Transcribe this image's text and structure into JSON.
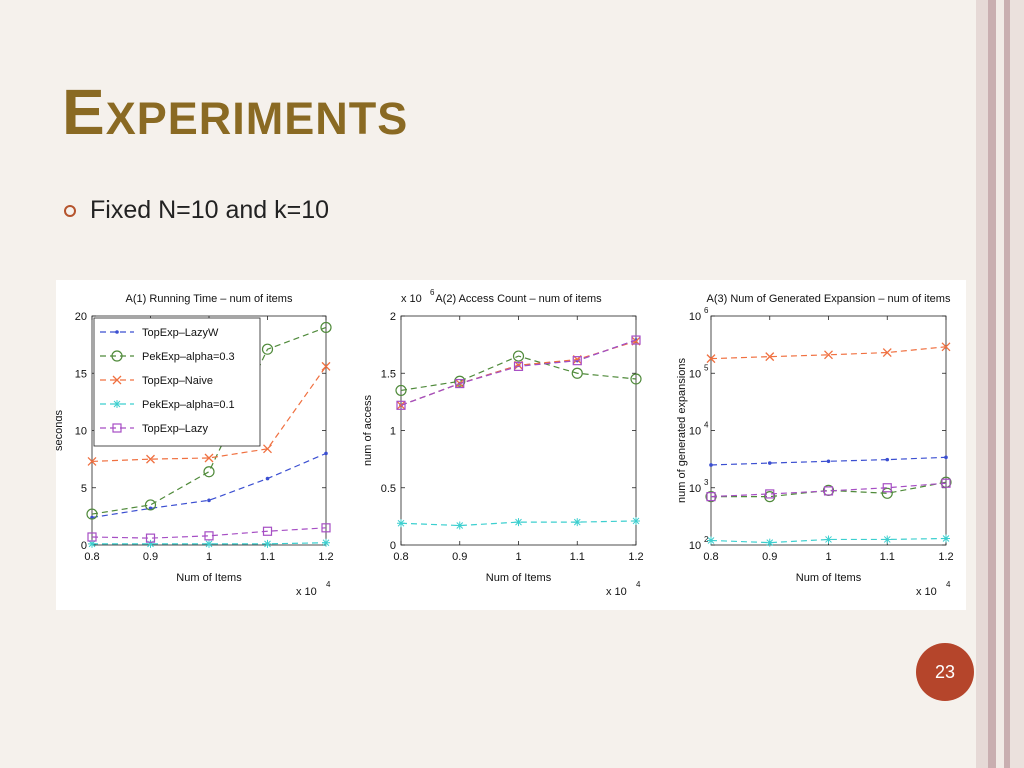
{
  "slide": {
    "title": "Experiments",
    "bullet": "Fixed N=10 and k=10",
    "page_number": "23"
  },
  "colors": {
    "title": "#8a6a23",
    "accent": "#b5452b",
    "TopExp-LazyW": "#3b4fd1",
    "PekExp-alpha=0.3": "#4f8a3a",
    "TopExp-Naive": "#f07040",
    "PekExp-alpha=0.1": "#3ccfcf",
    "TopExp-Lazy": "#a64ec4"
  },
  "chart_data": [
    {
      "type": "line",
      "title": "A(1) Running Time – num of items",
      "xlabel": "Num of Items",
      "ylabel": "seconds",
      "x_multiplier": "x 10",
      "x_multiplier_exp": "4",
      "x": [
        0.8,
        0.9,
        1,
        1.1,
        1.2
      ],
      "xticks": [
        "0.8",
        "0.9",
        "1",
        "1.1",
        "1.2"
      ],
      "xlim": [
        0.8,
        1.2
      ],
      "ylim": [
        0,
        20
      ],
      "yticks": [
        0,
        5,
        10,
        15,
        20
      ],
      "legend_position": "top-left",
      "series": [
        {
          "name": "TopExp–LazyW",
          "marker": "dot",
          "values": [
            2.4,
            3.2,
            3.9,
            5.8,
            8.0
          ]
        },
        {
          "name": "PekExp–alpha=0.3",
          "marker": "circle",
          "values": [
            2.7,
            3.5,
            6.4,
            17.1,
            19
          ]
        },
        {
          "name": "TopExp–Naive",
          "marker": "x",
          "values": [
            7.3,
            7.5,
            7.6,
            8.4,
            15.6
          ]
        },
        {
          "name": "PekExp–alpha=0.1",
          "marker": "star",
          "values": [
            0.1,
            0.1,
            0.1,
            0.1,
            0.2
          ]
        },
        {
          "name": "TopExp–Lazy",
          "marker": "square",
          "values": [
            0.7,
            0.6,
            0.8,
            1.2,
            1.5
          ]
        }
      ]
    },
    {
      "type": "line",
      "title": "A(2) Access Count – num of items",
      "xlabel": "Num of Items",
      "ylabel": "num of access",
      "x_multiplier": "x 10",
      "x_multiplier_exp": "4",
      "y_multiplier": "x 10",
      "y_multiplier_exp": "6",
      "x": [
        0.8,
        0.9,
        1,
        1.1,
        1.2
      ],
      "xticks": [
        "0.8",
        "0.9",
        "1",
        "1.1",
        "1.2"
      ],
      "xlim": [
        0.8,
        1.2
      ],
      "ylim": [
        0,
        2
      ],
      "yticks": [
        0,
        0.5,
        1,
        1.5,
        2
      ],
      "series": [
        {
          "name": "TopExp–LazyW",
          "marker": "dot",
          "values": [
            1.22,
            1.41,
            1.57,
            1.61,
            1.79
          ]
        },
        {
          "name": "PekExp–alpha=0.3",
          "marker": "circle",
          "values": [
            1.35,
            1.43,
            1.65,
            1.5,
            1.45
          ]
        },
        {
          "name": "TopExp–Naive",
          "marker": "x",
          "values": [
            1.22,
            1.41,
            1.57,
            1.62,
            1.78
          ]
        },
        {
          "name": "PekExp–alpha=0.1",
          "marker": "star",
          "values": [
            0.19,
            0.17,
            0.2,
            0.2,
            0.21
          ]
        },
        {
          "name": "TopExp–Lazy",
          "marker": "square",
          "values": [
            1.22,
            1.41,
            1.56,
            1.61,
            1.79
          ]
        }
      ]
    },
    {
      "type": "line",
      "title": "A(3) Num of Generated Expansion – num of items",
      "xlabel": "Num of Items",
      "ylabel": "num of generated expansions",
      "x_multiplier": "x 10",
      "x_multiplier_exp": "4",
      "x": [
        0.8,
        0.9,
        1,
        1.1,
        1.2
      ],
      "xticks": [
        "0.8",
        "0.9",
        "1",
        "1.1",
        "1.2"
      ],
      "xlim": [
        0.8,
        1.2
      ],
      "yscale": "log",
      "ylim": [
        100,
        1000000
      ],
      "yticks": [
        100,
        1000,
        10000,
        100000,
        1000000
      ],
      "series": [
        {
          "name": "TopExp–LazyW",
          "marker": "dot",
          "values": [
            2500,
            2700,
            2900,
            3100,
            3400
          ]
        },
        {
          "name": "PekExp–alpha=0.3",
          "marker": "circle",
          "values": [
            700,
            700,
            900,
            800,
            1250
          ]
        },
        {
          "name": "TopExp–Naive",
          "marker": "x",
          "values": [
            180000,
            195000,
            210000,
            230000,
            290000
          ]
        },
        {
          "name": "PekExp–alpha=0.1",
          "marker": "star",
          "values": [
            120,
            110,
            125,
            125,
            130
          ]
        },
        {
          "name": "TopExp–Lazy",
          "marker": "square",
          "values": [
            700,
            780,
            880,
            1000,
            1200
          ]
        }
      ]
    }
  ]
}
